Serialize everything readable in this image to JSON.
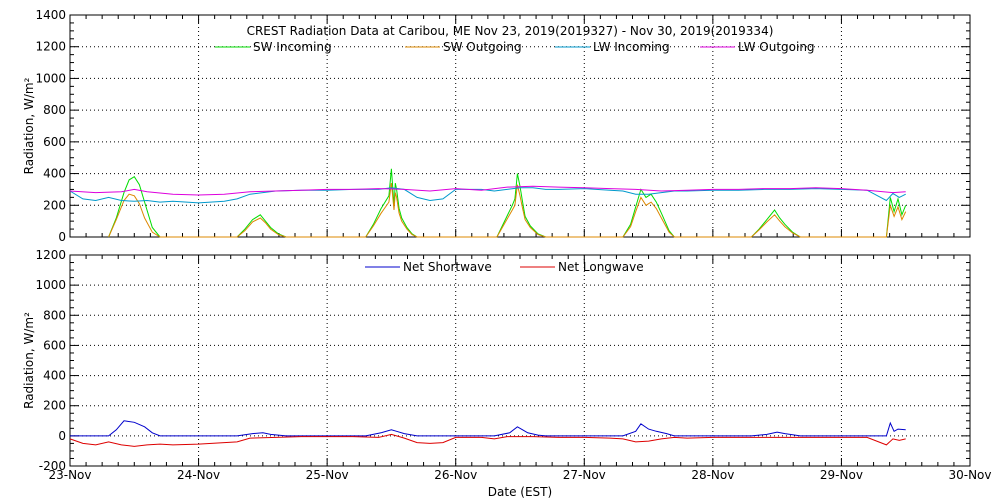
{
  "chart_data": [
    {
      "type": "line",
      "title": "CREST Radiation Data at Caribou, ME   Nov 23, 2019(2019327) - Nov 30, 2019(2019334)",
      "ylabel": "Radiation, W/m^2",
      "xlabel": "",
      "ylim": [
        0,
        1400
      ],
      "yticks": [
        0,
        200,
        400,
        600,
        800,
        1000,
        1200,
        1400
      ],
      "xlim": [
        "2019-11-23",
        "2019-11-30"
      ],
      "xticks": [
        "23-Nov",
        "24-Nov",
        "25-Nov",
        "26-Nov",
        "27-Nov",
        "28-Nov",
        "29-Nov",
        "30-Nov"
      ],
      "grid": true,
      "legend_position": "top-center",
      "series": [
        {
          "name": "SW Incoming",
          "color": "#00dd00",
          "x": [
            0.3,
            0.36,
            0.42,
            0.46,
            0.5,
            0.54,
            0.58,
            0.64,
            0.7,
            1.3,
            1.36,
            1.42,
            1.48,
            1.52,
            1.56,
            1.62,
            1.68,
            2.3,
            2.36,
            2.42,
            2.48,
            2.5,
            2.52,
            2.53,
            2.54,
            2.56,
            2.58,
            2.62,
            2.66,
            2.7,
            3.32,
            3.38,
            3.44,
            3.46,
            3.48,
            3.5,
            3.52,
            3.54,
            3.58,
            3.64,
            3.7,
            4.3,
            4.36,
            4.4,
            4.44,
            4.48,
            4.52,
            4.56,
            4.6,
            4.66,
            4.7,
            5.3,
            5.36,
            5.42,
            5.48,
            5.52,
            5.56,
            5.62,
            5.68,
            6.35,
            6.38,
            6.41,
            6.44,
            6.47,
            6.5
          ],
          "values": [
            0,
            120,
            280,
            360,
            380,
            330,
            220,
            60,
            0,
            0,
            50,
            110,
            140,
            100,
            60,
            20,
            0,
            0,
            80,
            180,
            260,
            430,
            200,
            340,
            300,
            180,
            120,
            60,
            20,
            0,
            0,
            100,
            200,
            240,
            400,
            320,
            220,
            130,
            70,
            20,
            0,
            0,
            80,
            190,
            300,
            250,
            270,
            220,
            150,
            40,
            0,
            0,
            50,
            110,
            170,
            120,
            80,
            30,
            0,
            0,
            250,
            160,
            240,
            140,
            200
          ]
        },
        {
          "name": "SW Outgoing",
          "color": "#dd8800",
          "x": [
            0.3,
            0.36,
            0.42,
            0.46,
            0.5,
            0.54,
            0.58,
            0.64,
            0.7,
            1.3,
            1.36,
            1.42,
            1.48,
            1.52,
            1.56,
            1.62,
            1.68,
            2.3,
            2.36,
            2.42,
            2.48,
            2.5,
            2.52,
            2.53,
            2.54,
            2.56,
            2.58,
            2.62,
            2.66,
            2.7,
            3.32,
            3.38,
            3.44,
            3.46,
            3.48,
            3.5,
            3.52,
            3.54,
            3.58,
            3.64,
            3.7,
            4.3,
            4.36,
            4.4,
            4.44,
            4.48,
            4.52,
            4.56,
            4.6,
            4.66,
            4.7,
            5.3,
            5.36,
            5.42,
            5.48,
            5.52,
            5.56,
            5.62,
            5.68,
            6.35,
            6.38,
            6.41,
            6.44,
            6.47,
            6.5
          ],
          "values": [
            0,
            110,
            230,
            270,
            260,
            210,
            120,
            30,
            0,
            0,
            40,
            95,
            120,
            90,
            50,
            15,
            0,
            0,
            70,
            150,
            220,
            340,
            170,
            280,
            250,
            150,
            100,
            50,
            15,
            0,
            0,
            85,
            170,
            200,
            330,
            260,
            180,
            110,
            60,
            15,
            0,
            0,
            65,
            160,
            250,
            200,
            220,
            180,
            120,
            30,
            0,
            0,
            45,
            95,
            140,
            100,
            65,
            25,
            0,
            0,
            200,
            130,
            190,
            110,
            160
          ]
        },
        {
          "name": "LW Incoming",
          "color": "#0099cc",
          "x": [
            0,
            0.1,
            0.2,
            0.3,
            0.4,
            0.5,
            0.6,
            0.7,
            0.8,
            1.0,
            1.2,
            1.3,
            1.4,
            1.6,
            1.8,
            2.0,
            2.2,
            2.4,
            2.5,
            2.6,
            2.7,
            2.8,
            2.9,
            3.0,
            3.2,
            3.3,
            3.4,
            3.5,
            3.6,
            3.7,
            3.8,
            4.0,
            4.2,
            4.3,
            4.4,
            4.5,
            4.6,
            4.7,
            4.8,
            5.0,
            5.2,
            5.4,
            5.5,
            5.6,
            5.8,
            6.0,
            6.2,
            6.35,
            6.4,
            6.45,
            6.5
          ],
          "values": [
            290,
            240,
            230,
            250,
            230,
            225,
            230,
            220,
            225,
            215,
            225,
            240,
            270,
            290,
            295,
            295,
            300,
            300,
            310,
            300,
            250,
            230,
            240,
            300,
            300,
            290,
            300,
            310,
            310,
            300,
            300,
            305,
            295,
            290,
            270,
            270,
            280,
            290,
            290,
            295,
            295,
            300,
            300,
            300,
            305,
            300,
            295,
            230,
            275,
            250,
            270
          ]
        },
        {
          "name": "LW Outgoing",
          "color": "#dd00dd",
          "x": [
            0,
            0.2,
            0.4,
            0.5,
            0.6,
            0.8,
            1.0,
            1.2,
            1.4,
            1.6,
            1.8,
            2.0,
            2.2,
            2.4,
            2.6,
            2.8,
            3.0,
            3.2,
            3.4,
            3.6,
            3.8,
            4.0,
            4.2,
            4.4,
            4.6,
            4.8,
            5.0,
            5.2,
            5.4,
            5.6,
            5.8,
            6.0,
            6.2,
            6.4,
            6.5
          ],
          "values": [
            290,
            280,
            285,
            300,
            285,
            270,
            265,
            270,
            285,
            290,
            295,
            300,
            300,
            305,
            300,
            290,
            305,
            295,
            315,
            320,
            315,
            310,
            305,
            300,
            290,
            295,
            300,
            300,
            305,
            305,
            310,
            305,
            295,
            280,
            285
          ]
        }
      ]
    },
    {
      "type": "line",
      "title": "",
      "ylabel": "Radiation, W/m^2",
      "xlabel": "Date (EST)",
      "ylim": [
        -200,
        1200
      ],
      "yticks": [
        -200,
        0,
        200,
        400,
        600,
        800,
        1000,
        1200
      ],
      "xlim": [
        "2019-11-23",
        "2019-11-30"
      ],
      "xticks": [
        "23-Nov",
        "24-Nov",
        "25-Nov",
        "26-Nov",
        "27-Nov",
        "28-Nov",
        "29-Nov",
        "30-Nov"
      ],
      "grid": true,
      "legend_position": "top-center",
      "series": [
        {
          "name": "Net Shortwave",
          "color": "#0000cc",
          "x": [
            0,
            0.3,
            0.36,
            0.42,
            0.5,
            0.58,
            0.64,
            0.7,
            1.3,
            1.42,
            1.5,
            1.56,
            1.68,
            2.3,
            2.42,
            2.5,
            2.54,
            2.6,
            2.7,
            3.3,
            3.42,
            3.48,
            3.52,
            3.56,
            3.64,
            3.7,
            4.3,
            4.4,
            4.44,
            4.5,
            4.56,
            4.64,
            4.7,
            5.3,
            5.42,
            5.5,
            5.56,
            5.68,
            6.35,
            6.38,
            6.41,
            6.44,
            6.5
          ],
          "values": [
            0,
            0,
            40,
            100,
            90,
            60,
            20,
            0,
            0,
            15,
            20,
            10,
            0,
            0,
            20,
            40,
            30,
            15,
            0,
            0,
            20,
            60,
            40,
            20,
            5,
            0,
            0,
            30,
            80,
            45,
            30,
            15,
            0,
            0,
            10,
            25,
            15,
            0,
            0,
            85,
            30,
            45,
            40
          ]
        },
        {
          "name": "Net Longwave",
          "color": "#dd0000",
          "x": [
            0,
            0.1,
            0.2,
            0.3,
            0.4,
            0.5,
            0.6,
            0.7,
            0.8,
            1.0,
            1.2,
            1.3,
            1.4,
            1.6,
            1.8,
            2.0,
            2.2,
            2.4,
            2.5,
            2.6,
            2.7,
            2.8,
            2.9,
            3.0,
            3.2,
            3.3,
            3.4,
            3.5,
            3.6,
            3.8,
            4.0,
            4.2,
            4.3,
            4.4,
            4.5,
            4.6,
            4.7,
            4.8,
            5.0,
            5.2,
            5.4,
            5.6,
            5.8,
            6.0,
            6.2,
            6.35,
            6.4,
            6.45,
            6.5
          ],
          "values": [
            -20,
            -50,
            -60,
            -40,
            -60,
            -70,
            -60,
            -55,
            -60,
            -55,
            -45,
            -40,
            -15,
            -10,
            -5,
            -5,
            -5,
            -10,
            10,
            -15,
            -45,
            -50,
            -45,
            -10,
            -10,
            -20,
            -5,
            -5,
            -5,
            -10,
            -10,
            -15,
            -20,
            -40,
            -35,
            -20,
            -10,
            -15,
            -10,
            -10,
            -10,
            -10,
            -10,
            -10,
            -10,
            -60,
            -20,
            -30,
            -20
          ]
        }
      ]
    }
  ]
}
